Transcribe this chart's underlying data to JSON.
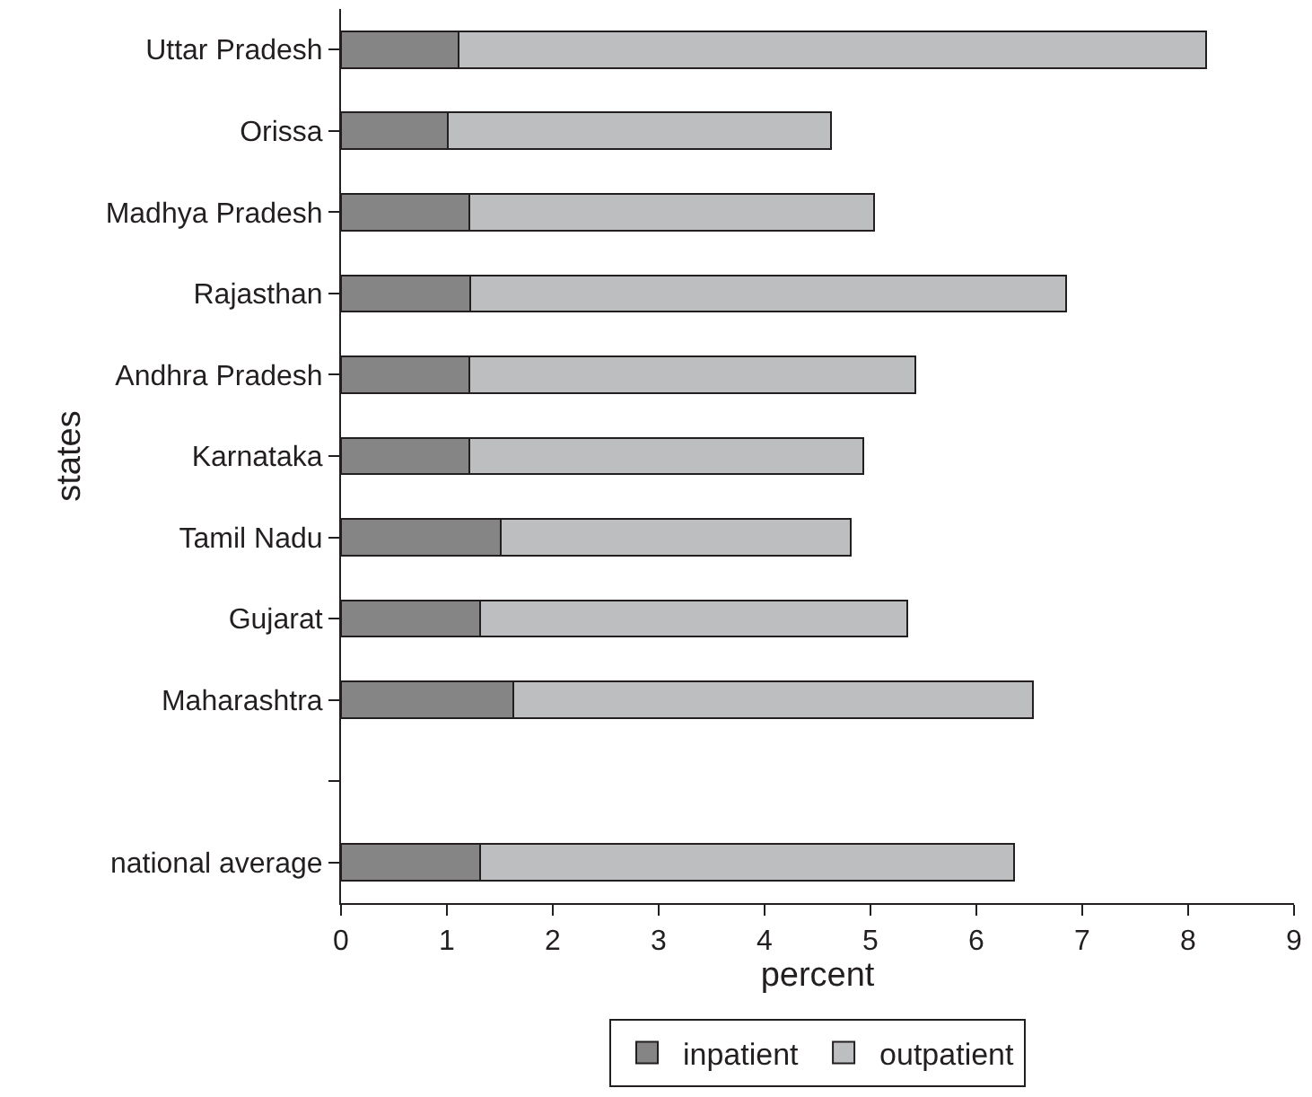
{
  "chart_data": {
    "type": "bar",
    "orientation": "horizontal",
    "stacked": true,
    "xlabel": "percent",
    "ylabel": "states",
    "categories": [
      "Uttar Pradesh",
      "Orissa",
      "Madhya Pradesh",
      "Rajasthan",
      "Andhra Pradesh",
      "Karnataka",
      "Tamil Nadu",
      "Gujarat",
      "Maharashtra",
      null,
      "national average"
    ],
    "series": [
      {
        "name": "inpatient",
        "color": "#858585",
        "values": [
          1.11,
          1.01,
          1.21,
          1.22,
          1.21,
          1.21,
          1.51,
          1.31,
          1.63,
          null,
          1.31
        ]
      },
      {
        "name": "outpatient",
        "color": "#bdbec0",
        "values": [
          7.06,
          3.62,
          3.82,
          5.63,
          4.21,
          3.72,
          3.3,
          4.04,
          4.9,
          null,
          5.05
        ]
      }
    ],
    "xlim": [
      0,
      9
    ],
    "xticks": [
      0,
      1,
      2,
      3,
      4,
      5,
      6,
      7,
      8,
      9
    ],
    "legend": "bottom"
  }
}
